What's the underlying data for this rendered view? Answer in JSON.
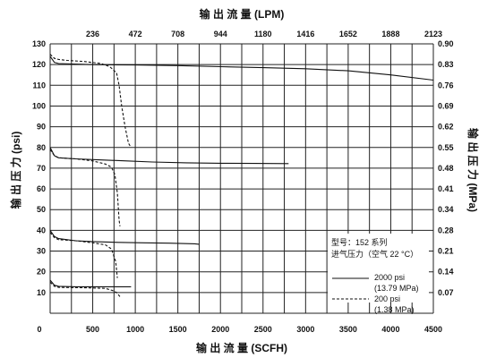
{
  "chart_data": {
    "type": "line",
    "title": "输 出 流 量 (LPM)",
    "xlabel": "输 出 流 量 (SCFH)",
    "ylabel_left": "输 出 压 力 (psi)",
    "ylabel_right": "输 出 压 力 (MPa)",
    "x_bottom": {
      "min": 0,
      "max": 4500,
      "ticks": [
        "0",
        "500",
        "1000",
        "1500",
        "2000",
        "2500",
        "3000",
        "3500",
        "4000",
        "4500"
      ]
    },
    "x_top": {
      "ticks": [
        "236",
        "472",
        "708",
        "944",
        "1180",
        "1416",
        "1652",
        "1888",
        "2123"
      ]
    },
    "y_left": {
      "min": 0,
      "max": 130,
      "ticks": [
        "10",
        "20",
        "30",
        "40",
        "50",
        "60",
        "70",
        "80",
        "90",
        "100",
        "110",
        "120",
        "130"
      ]
    },
    "y_right": {
      "ticks": [
        "0.07",
        "0.14",
        "0.21",
        "0.28",
        "0.34",
        "0.41",
        "0.48",
        "0.55",
        "0.62",
        "0.69",
        "0.76",
        "0.83",
        "0.90"
      ]
    },
    "legend": {
      "title_line1": "型号：152 系列",
      "title_line2": "进气压力（空气 22 °C）",
      "entry1_line1": "2000 psi",
      "entry1_line2": "(13.79 MPa)",
      "entry2_line1": "200 psi",
      "entry2_line2": "(1.38 MPa)"
    },
    "series": [
      {
        "style": "solid",
        "x": [
          0,
          50,
          100,
          500,
          1000,
          1500,
          2000,
          2500,
          3000,
          3500,
          4000,
          4500
        ],
        "y": [
          124,
          121,
          120.5,
          120,
          119.8,
          119.5,
          119,
          118.5,
          118,
          117,
          115,
          112.5
        ]
      },
      {
        "style": "dashed",
        "x": [
          0,
          50,
          100,
          200,
          400,
          600,
          700,
          780,
          810,
          840,
          880,
          920,
          950
        ],
        "y": [
          125,
          123,
          122.5,
          122,
          121.5,
          120.5,
          119,
          116,
          110,
          100,
          90,
          82,
          80
        ]
      },
      {
        "style": "solid",
        "x": [
          0,
          50,
          100,
          300,
          600,
          900,
          1200,
          1600,
          2000,
          2400,
          2800
        ],
        "y": [
          80,
          76,
          75,
          74.5,
          74,
          73.5,
          73,
          72.6,
          72.4,
          72.3,
          72.2
        ]
      },
      {
        "style": "dashed",
        "x": [
          0,
          50,
          100,
          300,
          500,
          650,
          720,
          760,
          790,
          810,
          820
        ],
        "y": [
          79,
          76,
          75,
          74.5,
          73.5,
          72,
          70.5,
          67,
          58,
          45,
          42
        ]
      },
      {
        "style": "solid",
        "x": [
          0,
          50,
          100,
          300,
          500,
          800,
          1100,
          1400,
          1700,
          1750
        ],
        "y": [
          40,
          37,
          36,
          35,
          34.6,
          34.2,
          34,
          33.8,
          33.5,
          33.3
        ]
      },
      {
        "style": "dashed",
        "x": [
          0,
          50,
          100,
          300,
          500,
          650,
          720,
          770,
          790
        ],
        "y": [
          39,
          36.5,
          35.5,
          35,
          34,
          33,
          31,
          25,
          17
        ]
      },
      {
        "style": "solid",
        "x": [
          0,
          50,
          100,
          300,
          600,
          900,
          950
        ],
        "y": [
          16,
          13.5,
          13,
          12.8,
          12.8,
          12.8,
          12.8
        ]
      },
      {
        "style": "dashed",
        "x": [
          0,
          50,
          100,
          300,
          500,
          650,
          730,
          780,
          820
        ],
        "y": [
          15,
          13,
          12.5,
          12.4,
          12.2,
          12,
          11,
          10,
          8
        ]
      }
    ]
  }
}
